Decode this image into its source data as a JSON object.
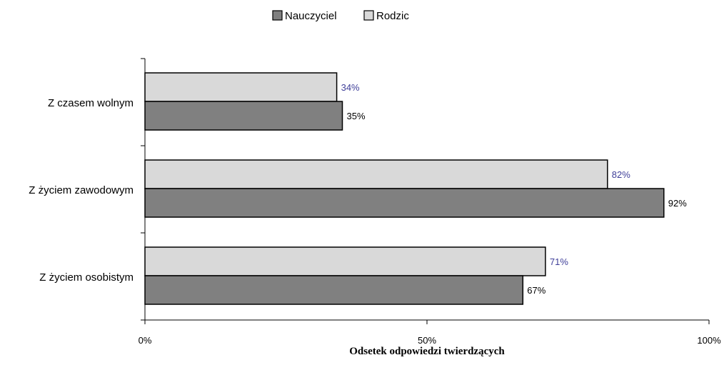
{
  "chart_data": {
    "type": "bar",
    "orientation": "horizontal",
    "categories": [
      "Z czasem wolnym",
      "Z życiem zawodowym",
      "Z życiem osobistym"
    ],
    "series": [
      {
        "name": "Rodzic",
        "values": [
          34,
          82,
          71
        ],
        "labels": [
          "34%",
          "82%",
          "71%"
        ],
        "color": "#d9d9d9",
        "label_color": "#3f3f99"
      },
      {
        "name": "Nauczyciel",
        "values": [
          35,
          92,
          67
        ],
        "labels": [
          "35%",
          "92%",
          "67%"
        ],
        "color": "#808080",
        "label_color": "#000000"
      }
    ],
    "xlabel": "Odsetek odpowiedzi twierdzących",
    "xlim": [
      0,
      100
    ],
    "xticks": [
      0,
      50,
      100
    ],
    "xtick_labels": [
      "0%",
      "50%",
      "100%"
    ],
    "legend": {
      "placement": "top-center",
      "order": [
        "Nauczyciel",
        "Rodzic"
      ]
    },
    "grid": false
  }
}
